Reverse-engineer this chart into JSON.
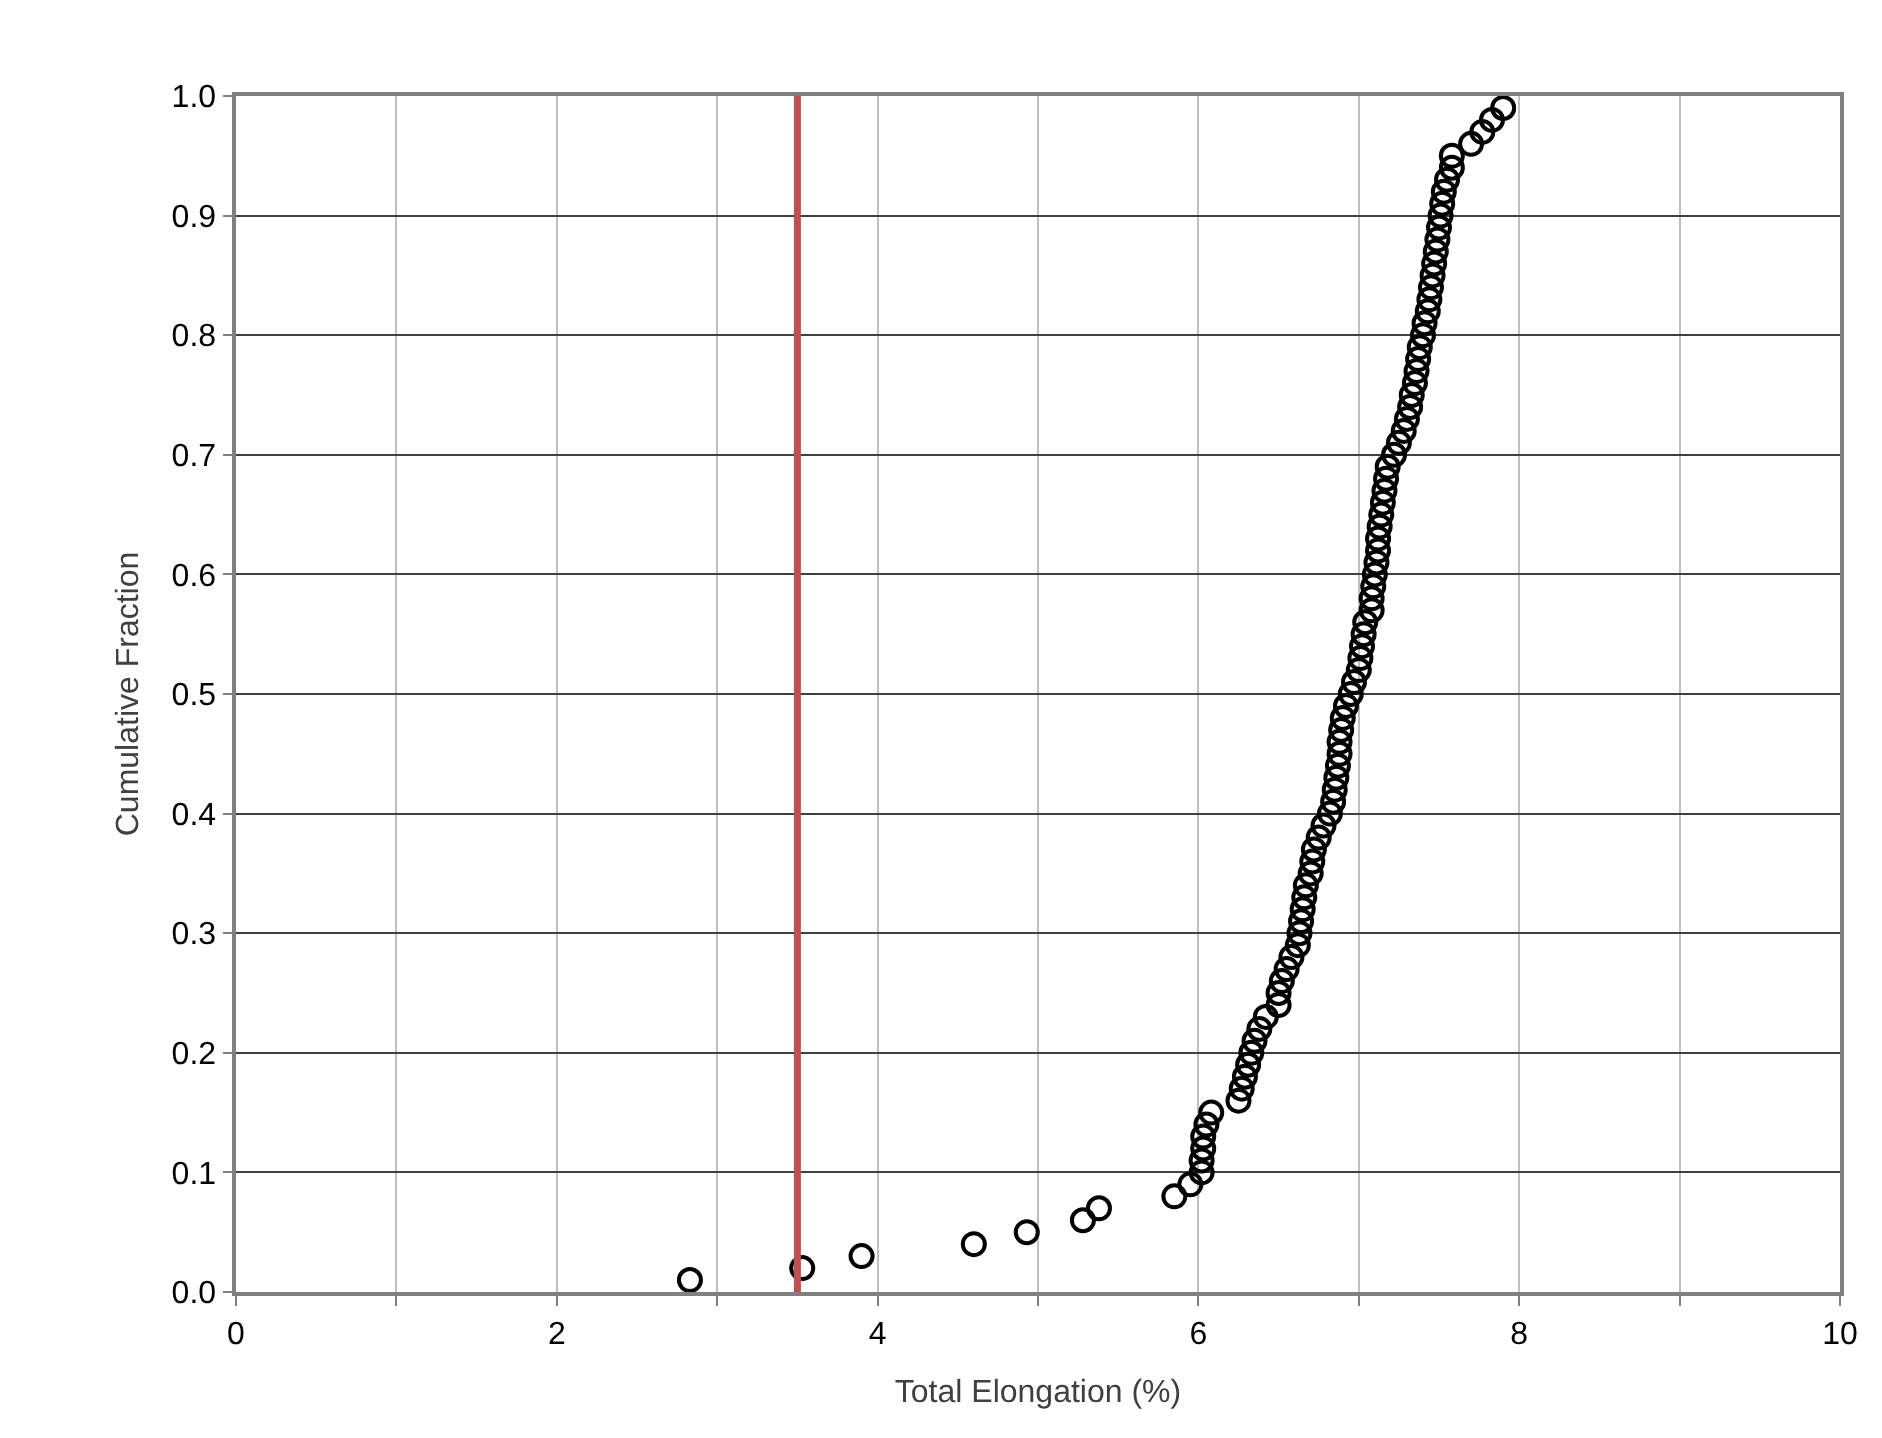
{
  "chart_data": {
    "type": "scatter",
    "xlabel": "Total Elongation (%)",
    "ylabel": "Cumulative Fraction",
    "xlim": [
      0,
      10
    ],
    "ylim": [
      0,
      1.0
    ],
    "xticks": [
      0,
      {
        "value": 1,
        "label": null
      },
      2,
      {
        "value": 3,
        "label": null
      },
      4,
      {
        "value": 5,
        "label": null
      },
      6,
      {
        "value": 7,
        "label": null
      },
      8,
      {
        "value": 9,
        "label": null
      },
      10
    ],
    "yticks": [
      {
        "value": 0,
        "label": "0.0"
      },
      0.1,
      0.2,
      0.3,
      0.4,
      0.5,
      0.6,
      0.7,
      0.8,
      0.9,
      {
        "value": 1.0,
        "label": "1.0"
      }
    ],
    "grid": true,
    "marker": "circle",
    "ref_lines": [
      {
        "axis": "x",
        "value": 3.5,
        "color": "#c0504d"
      }
    ],
    "series": [
      {
        "color": "#000000",
        "x": [
          2.83,
          3.53,
          3.9,
          4.6,
          4.93,
          5.28,
          5.38,
          5.85,
          5.95,
          6.02,
          6.02,
          6.03,
          6.03,
          6.05,
          6.08,
          6.25,
          6.27,
          6.29,
          6.31,
          6.33,
          6.35,
          6.38,
          6.42,
          6.5,
          6.5,
          6.52,
          6.55,
          6.58,
          6.62,
          6.63,
          6.64,
          6.65,
          6.66,
          6.67,
          6.7,
          6.71,
          6.72,
          6.75,
          6.78,
          6.82,
          6.84,
          6.85,
          6.86,
          6.87,
          6.88,
          6.88,
          6.89,
          6.9,
          6.92,
          6.95,
          6.97,
          7.0,
          7.01,
          7.02,
          7.03,
          7.04,
          7.08,
          7.08,
          7.09,
          7.1,
          7.11,
          7.12,
          7.12,
          7.13,
          7.14,
          7.15,
          7.16,
          7.17,
          7.18,
          7.22,
          7.25,
          7.28,
          7.3,
          7.32,
          7.33,
          7.35,
          7.36,
          7.37,
          7.38,
          7.4,
          7.41,
          7.43,
          7.44,
          7.45,
          7.46,
          7.47,
          7.48,
          7.49,
          7.5,
          7.51,
          7.52,
          7.53,
          7.55,
          7.58,
          7.58,
          7.7,
          7.77,
          7.83,
          7.9
        ],
        "values": [
          0.01,
          0.02,
          0.03,
          0.04,
          0.05,
          0.06,
          0.07,
          0.08,
          0.09,
          0.1,
          0.11,
          0.12,
          0.13,
          0.14,
          0.15,
          0.16,
          0.17,
          0.18,
          0.19,
          0.2,
          0.21,
          0.22,
          0.23,
          0.24,
          0.25,
          0.26,
          0.27,
          0.28,
          0.29,
          0.3,
          0.31,
          0.32,
          0.33,
          0.34,
          0.35,
          0.36,
          0.37,
          0.38,
          0.39,
          0.4,
          0.41,
          0.42,
          0.43,
          0.44,
          0.45,
          0.46,
          0.47,
          0.48,
          0.49,
          0.5,
          0.51,
          0.52,
          0.53,
          0.54,
          0.55,
          0.56,
          0.57,
          0.58,
          0.59,
          0.6,
          0.61,
          0.62,
          0.63,
          0.64,
          0.65,
          0.66,
          0.67,
          0.68,
          0.69,
          0.7,
          0.71,
          0.72,
          0.73,
          0.74,
          0.75,
          0.76,
          0.77,
          0.78,
          0.79,
          0.8,
          0.81,
          0.82,
          0.83,
          0.84,
          0.85,
          0.86,
          0.87,
          0.88,
          0.89,
          0.9,
          0.91,
          0.92,
          0.93,
          0.94,
          0.95,
          0.96,
          0.97,
          0.98,
          0.99
        ]
      }
    ]
  }
}
